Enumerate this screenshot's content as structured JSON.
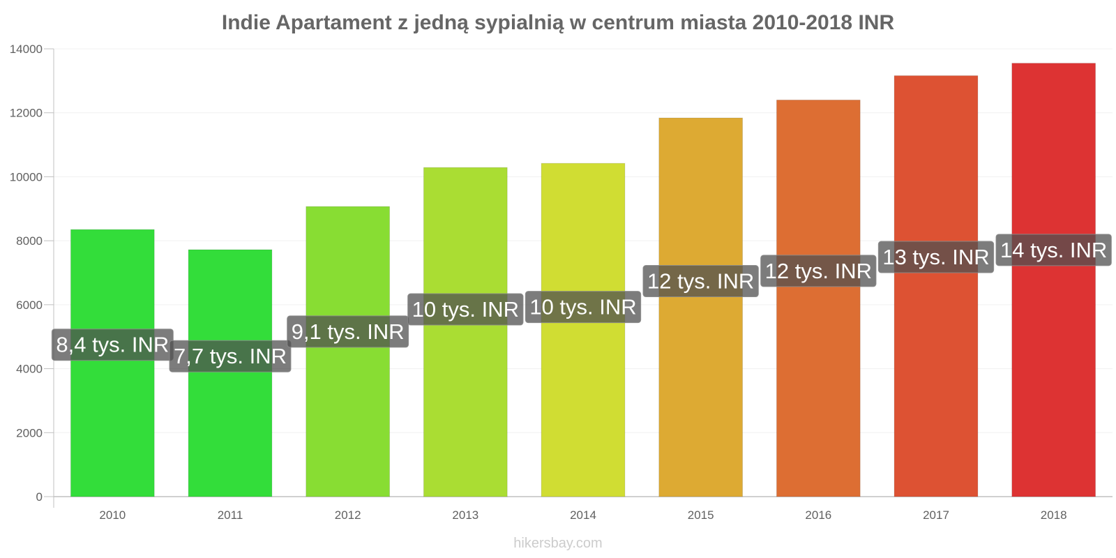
{
  "chart_data": {
    "type": "bar",
    "title": "Indie Apartament z jedną sypialnią w centrum miasta 2010-2018 INR",
    "xlabel": "",
    "ylabel": "",
    "categories": [
      "2010",
      "2011",
      "2012",
      "2013",
      "2014",
      "2015",
      "2016",
      "2017",
      "2018"
    ],
    "values": [
      8350,
      7720,
      9070,
      10290,
      10420,
      11840,
      12400,
      13160,
      13550
    ],
    "data_labels": [
      "8,4 tys. INR",
      "7,7 tys. INR",
      "9,1 tys. INR",
      "10 tys. INR",
      "10 tys. INR",
      "12 tys. INR",
      "12 tys. INR",
      "13 tys. INR",
      "14 tys. INR"
    ],
    "bar_colors": [
      "#33dd3a",
      "#33dd3a",
      "#88dd33",
      "#aadd33",
      "#d0dd33",
      "#ddaa33",
      "#dd6e33",
      "#dd5233",
      "#dd3333"
    ],
    "ylim": [
      0,
      14000
    ],
    "yticks": [
      0,
      2000,
      4000,
      6000,
      8000,
      10000,
      12000,
      14000
    ],
    "grid": true,
    "legend": "none"
  },
  "footer": {
    "watermark": "hikersbay.com"
  }
}
